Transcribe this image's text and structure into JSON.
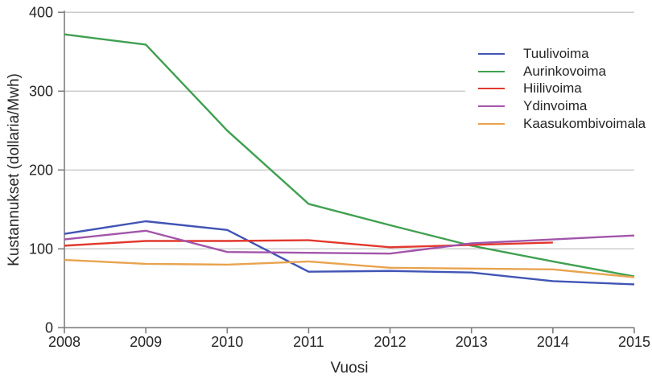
{
  "chart_data": {
    "type": "line",
    "title": "",
    "xlabel": "Vuosi",
    "ylabel": "Kustannukset (dollaria/Mwh)",
    "x": [
      2008,
      2009,
      2010,
      2011,
      2012,
      2013,
      2014,
      2015
    ],
    "xlim": [
      2008,
      2015
    ],
    "ylim": [
      0,
      400
    ],
    "yticks": [
      0,
      100,
      200,
      300,
      400
    ],
    "xticks": [
      2008,
      2009,
      2010,
      2011,
      2012,
      2013,
      2014,
      2015
    ],
    "grid": true,
    "legend_position": "upper right",
    "series": [
      {
        "name": "Tuulivoima",
        "color": "#4155b5",
        "values": [
          119,
          135,
          124,
          71,
          72,
          70,
          59,
          55
        ]
      },
      {
        "name": "Aurinkovoima",
        "color": "#3fa050",
        "values": [
          372,
          359,
          250,
          157,
          130,
          104,
          84,
          65
        ]
      },
      {
        "name": "Hiilivoima",
        "color": "#e2382d",
        "values": [
          104,
          110,
          110,
          111,
          102,
          105,
          108,
          null
        ]
      },
      {
        "name": "Ydinvoima",
        "color": "#a255aa",
        "values": [
          112,
          123,
          96,
          95,
          94,
          107,
          112,
          117
        ]
      },
      {
        "name": "Kaasukombivoimala",
        "color": "#e9a34f",
        "values": [
          86,
          81,
          80,
          84,
          76,
          75,
          74,
          64
        ]
      }
    ]
  },
  "style": {
    "axis_color": "#7f7f7f",
    "grid_color": "#c9c9c9",
    "text_color": "#262626"
  }
}
